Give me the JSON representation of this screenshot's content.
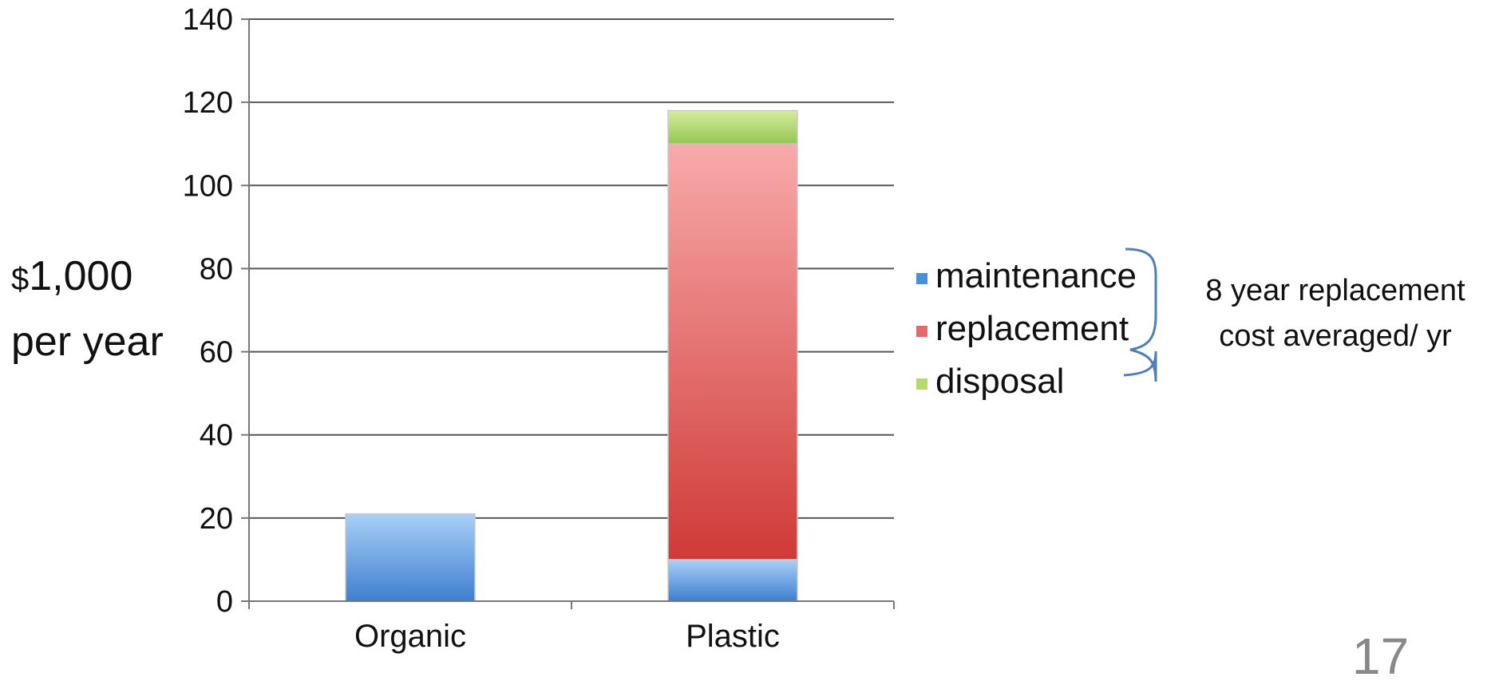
{
  "chart_data": {
    "type": "bar",
    "stacked": true,
    "categories": [
      "Organic",
      "Plastic"
    ],
    "series": [
      {
        "name": "maintenance",
        "values": [
          21,
          10
        ],
        "color": "#4a8fd9"
      },
      {
        "name": "replacement",
        "values": [
          0,
          100
        ],
        "color": "#e36a6a"
      },
      {
        "name": "disposal",
        "values": [
          0,
          8
        ],
        "color": "#b5d96a"
      }
    ],
    "ylim": [
      0,
      140
    ],
    "yticks": [
      0,
      20,
      40,
      60,
      80,
      100,
      120,
      140
    ],
    "grid": true,
    "legend_position": "right",
    "ylabel_line1_currency": "$",
    "ylabel_line1_value": "1,000",
    "ylabel_line2": "per year",
    "annotation_line1": "8 year replacement",
    "annotation_line2": "cost averaged/ yr"
  },
  "page_number": "17"
}
